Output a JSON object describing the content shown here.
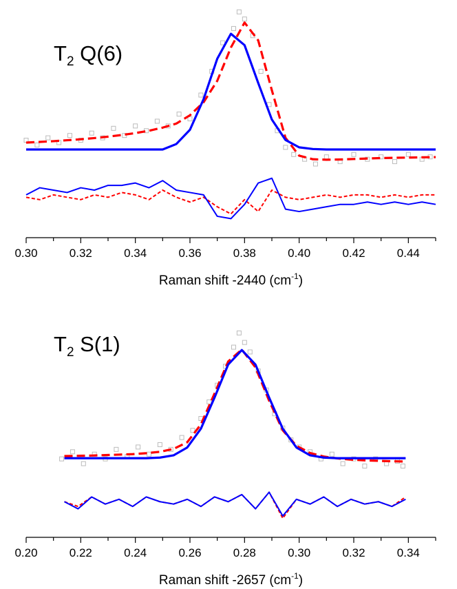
{
  "chart_data": [
    {
      "type": "line",
      "title": [
        "T",
        "2",
        " Q(6)"
      ],
      "xlabel": [
        "Raman shift -2440 (cm",
        "-1",
        ")"
      ],
      "xlim": [
        0.3,
        0.45
      ],
      "ylim": [
        0,
        100
      ],
      "xticks": [
        {
          "value": 0.3,
          "label": "0.30"
        },
        0.32,
        0.34,
        0.36,
        0.38,
        {
          "value": 0.4,
          "label": "0.40"
        },
        0.42,
        0.44
      ],
      "minor_xticks": [
        0.31,
        0.33,
        0.35,
        0.37,
        0.39,
        0.41,
        0.43,
        0.45
      ],
      "series": [
        {
          "style": "markers",
          "color": "#bbbbbb",
          "x": [
            0.3,
            0.304,
            0.308,
            0.312,
            0.316,
            0.32,
            0.324,
            0.328,
            0.332,
            0.336,
            0.34,
            0.344,
            0.348,
            0.352,
            0.356,
            0.36,
            0.364,
            0.368,
            0.372,
            0.376,
            0.378,
            0.38,
            0.383,
            0.386,
            0.389,
            0.392,
            0.395,
            0.398,
            0.402,
            0.406,
            0.41,
            0.415,
            0.42,
            0.425,
            0.43,
            0.435,
            0.44,
            0.445,
            0.448
          ],
          "values": [
            41,
            39,
            42,
            40,
            43,
            41,
            44,
            42,
            46,
            43,
            47,
            45,
            49,
            47,
            52,
            50,
            60,
            70,
            82,
            88,
            95,
            92,
            85,
            70,
            56,
            45,
            38,
            35,
            33,
            31,
            34,
            32,
            35,
            33,
            34,
            32,
            35,
            33,
            34
          ]
        },
        {
          "style": "dash",
          "color": "#ff0000",
          "x": [
            0.3,
            0.305,
            0.31,
            0.315,
            0.32,
            0.325,
            0.33,
            0.335,
            0.34,
            0.345,
            0.35,
            0.355,
            0.36,
            0.365,
            0.37,
            0.375,
            0.38,
            0.385,
            0.39,
            0.395,
            0.4,
            0.405,
            0.41,
            0.415,
            0.42,
            0.425,
            0.43,
            0.435,
            0.44,
            0.445,
            0.45
          ],
          "values": [
            40.0,
            40.3,
            40.6,
            41.0,
            41.4,
            41.9,
            42.5,
            43.2,
            44.0,
            45.0,
            46.3,
            48.0,
            51.5,
            57,
            66,
            80,
            90.5,
            83,
            62,
            42,
            34.5,
            33.0,
            32.8,
            32.9,
            33.1,
            33.3,
            33.5,
            33.6,
            33.7,
            33.8,
            33.9
          ]
        },
        {
          "style": "solid",
          "color": "#0000ff",
          "x": [
            0.3,
            0.305,
            0.31,
            0.315,
            0.32,
            0.325,
            0.33,
            0.335,
            0.34,
            0.345,
            0.35,
            0.355,
            0.36,
            0.365,
            0.37,
            0.375,
            0.38,
            0.385,
            0.39,
            0.395,
            0.4,
            0.405,
            0.41,
            0.415,
            0.42,
            0.425,
            0.43,
            0.435,
            0.44,
            0.445,
            0.45
          ],
          "values": [
            37.1,
            37.1,
            37.1,
            37.1,
            37.1,
            37.1,
            37.1,
            37.1,
            37.1,
            37.1,
            37.1,
            39.4,
            45.4,
            58.3,
            75.3,
            85.8,
            81.0,
            65.1,
            49.7,
            41.1,
            38.0,
            37.3,
            37.1,
            37.1,
            37.1,
            37.1,
            37.1,
            37.1,
            37.1,
            37.1,
            37.1
          ]
        },
        {
          "style": "thin-dash",
          "color": "#ff0000",
          "x": [
            0.3,
            0.305,
            0.31,
            0.315,
            0.32,
            0.325,
            0.33,
            0.335,
            0.34,
            0.345,
            0.35,
            0.355,
            0.36,
            0.365,
            0.37,
            0.375,
            0.38,
            0.385,
            0.39,
            0.395,
            0.4,
            0.405,
            0.41,
            0.415,
            0.42,
            0.425,
            0.43,
            0.435,
            0.44,
            0.445,
            0.45
          ],
          "values": [
            17,
            16,
            18,
            17,
            16,
            18,
            17,
            19,
            18,
            16,
            20,
            17,
            15,
            17,
            13,
            10,
            16,
            11,
            20,
            17,
            16,
            17,
            18,
            17,
            18,
            18,
            17,
            18,
            17,
            18,
            18
          ]
        },
        {
          "style": "thin",
          "color": "#0000ff",
          "x": [
            0.3,
            0.305,
            0.31,
            0.315,
            0.32,
            0.325,
            0.33,
            0.335,
            0.34,
            0.345,
            0.35,
            0.355,
            0.36,
            0.365,
            0.37,
            0.375,
            0.38,
            0.385,
            0.39,
            0.395,
            0.4,
            0.405,
            0.41,
            0.415,
            0.42,
            0.425,
            0.43,
            0.435,
            0.44,
            0.445,
            0.45
          ],
          "values": [
            18,
            21,
            20,
            19,
            21,
            20,
            22,
            22,
            23,
            21,
            24,
            20,
            19,
            18,
            9,
            8,
            14,
            23,
            25,
            12,
            11,
            12,
            13,
            14,
            14,
            15,
            14,
            15,
            14,
            15,
            14
          ]
        }
      ]
    },
    {
      "type": "line",
      "title": [
        "T",
        "2",
        " S(1)"
      ],
      "xlabel": [
        "Raman shift -2657 (cm",
        "-1",
        ")"
      ],
      "xlim": [
        0.2,
        0.35
      ],
      "ylim": [
        0,
        100
      ],
      "xticks": [
        {
          "value": 0.2,
          "label": "0.20"
        },
        0.22,
        0.24,
        0.26,
        0.28,
        {
          "value": 0.3,
          "label": "0.30"
        },
        0.32,
        0.34
      ],
      "minor_xticks": [
        0.21,
        0.23,
        0.25,
        0.27,
        0.29,
        0.31,
        0.33,
        0.35
      ],
      "series": [
        {
          "style": "markers",
          "color": "#bbbbbb",
          "x": [
            0.213,
            0.217,
            0.221,
            0.225,
            0.229,
            0.233,
            0.237,
            0.241,
            0.245,
            0.249,
            0.253,
            0.257,
            0.261,
            0.264,
            0.267,
            0.27,
            0.273,
            0.276,
            0.278,
            0.28,
            0.282,
            0.285,
            0.288,
            0.291,
            0.294,
            0.297,
            0.3,
            0.304,
            0.308,
            0.312,
            0.316,
            0.32,
            0.324,
            0.328,
            0.332,
            0.336,
            0.338
          ],
          "values": [
            33,
            36,
            31,
            35,
            33,
            37,
            34,
            38,
            35,
            39,
            37,
            42,
            45,
            50,
            57,
            64,
            72,
            80,
            86,
            82,
            78,
            70,
            62,
            52,
            46,
            41,
            38,
            36,
            33,
            35,
            31,
            33,
            30,
            33,
            31,
            32,
            30
          ]
        },
        {
          "style": "dash",
          "color": "#ff0000",
          "x": [
            0.214,
            0.219,
            0.224,
            0.229,
            0.234,
            0.239,
            0.244,
            0.249,
            0.254,
            0.259,
            0.264,
            0.269,
            0.274,
            0.279,
            0.284,
            0.289,
            0.294,
            0.299,
            0.304,
            0.309,
            0.314,
            0.319,
            0.324,
            0.329,
            0.334,
            0.339
          ],
          "values": [
            34.2,
            34.3,
            34.4,
            34.6,
            34.8,
            35.0,
            35.4,
            36.0,
            37.2,
            40.0,
            47.5,
            60.5,
            74.0,
            79.0,
            71.5,
            57.5,
            45.0,
            38.5,
            35.5,
            34.0,
            33.2,
            32.7,
            32.4,
            32.2,
            32.0,
            31.9
          ]
        },
        {
          "style": "solid",
          "color": "#0000ff",
          "x": [
            0.214,
            0.219,
            0.224,
            0.229,
            0.234,
            0.239,
            0.244,
            0.249,
            0.254,
            0.259,
            0.264,
            0.269,
            0.274,
            0.279,
            0.284,
            0.289,
            0.294,
            0.299,
            0.304,
            0.309,
            0.314,
            0.319,
            0.324,
            0.329,
            0.334,
            0.339
          ],
          "values": [
            33.3,
            33.3,
            33.3,
            33.3,
            33.3,
            33.3,
            33.3,
            33.55,
            34.5,
            37.8,
            45.7,
            58.8,
            72.7,
            78.8,
            72.7,
            58.8,
            45.7,
            37.8,
            34.5,
            33.55,
            33.3,
            33.3,
            33.3,
            33.3,
            33.3,
            33.3
          ]
        },
        {
          "style": "thin-dash",
          "color": "#ff0000",
          "x": [
            0.214,
            0.219,
            0.224,
            0.229,
            0.234,
            0.239,
            0.244,
            0.249,
            0.254,
            0.259,
            0.264,
            0.269,
            0.274,
            0.279,
            0.284,
            0.289,
            0.294,
            0.299,
            0.304,
            0.309,
            0.314,
            0.319,
            0.324,
            0.329,
            0.334,
            0.339
          ],
          "values": [
            15,
            13,
            17,
            14,
            16,
            13,
            17,
            15,
            14,
            16,
            13,
            17,
            15,
            18,
            12,
            19,
            8,
            16,
            14,
            17,
            13,
            16,
            14,
            15,
            13,
            17
          ]
        },
        {
          "style": "thin",
          "color": "#0000ff",
          "x": [
            0.214,
            0.219,
            0.224,
            0.229,
            0.234,
            0.239,
            0.244,
            0.249,
            0.254,
            0.259,
            0.264,
            0.269,
            0.274,
            0.279,
            0.284,
            0.289,
            0.294,
            0.299,
            0.304,
            0.309,
            0.314,
            0.319,
            0.324,
            0.329,
            0.334,
            0.339
          ],
          "values": [
            15,
            12,
            17,
            14,
            16,
            13,
            17,
            15,
            14,
            16,
            13,
            17,
            15,
            18,
            12,
            19,
            9,
            16,
            14,
            17,
            13,
            16,
            14,
            15,
            13,
            16
          ]
        }
      ]
    }
  ]
}
